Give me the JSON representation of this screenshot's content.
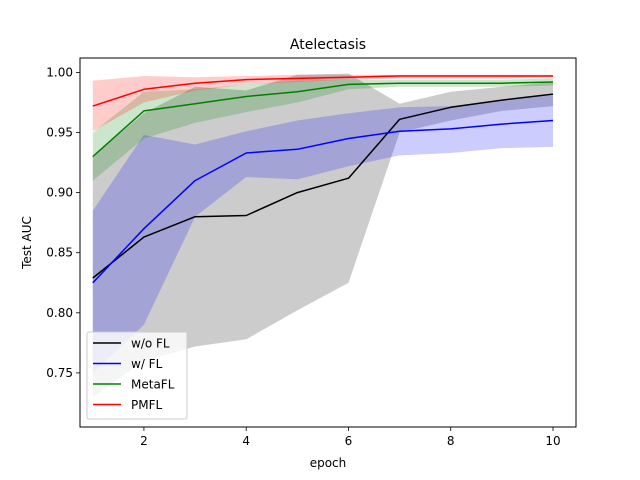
{
  "chart_data": {
    "type": "line",
    "title": "Atelectasis",
    "xlabel": "epoch",
    "ylabel": "Test AUC",
    "xlim": [
      0.75,
      10.45
    ],
    "ylim": [
      0.705,
      1.012
    ],
    "xticks": [
      2,
      4,
      6,
      8,
      10
    ],
    "xtick_labels": [
      "2",
      "4",
      "6",
      "8",
      "10"
    ],
    "yticks": [
      0.75,
      0.8,
      0.85,
      0.9,
      0.95,
      1.0
    ],
    "ytick_labels": [
      "0.75",
      "0.80",
      "0.85",
      "0.90",
      "0.95",
      "1.00"
    ],
    "legend_position": "lower-left",
    "x": [
      1,
      2,
      3,
      4,
      5,
      6,
      7,
      8,
      9,
      10
    ],
    "series": [
      {
        "name": "w/o FL",
        "color": "#000000",
        "band_color": "#808080",
        "band_opacity": 0.4,
        "values": [
          0.829,
          0.863,
          0.88,
          0.881,
          0.9,
          0.912,
          0.961,
          0.971,
          0.977,
          0.982
        ],
        "lower": [
          0.73,
          0.76,
          0.772,
          0.778,
          0.802,
          0.825,
          0.95,
          0.96,
          0.968,
          0.972
        ],
        "upper": [
          0.93,
          0.966,
          0.988,
          0.985,
          0.998,
          0.999,
          0.974,
          0.984,
          0.988,
          0.992
        ]
      },
      {
        "name": "w/ FL",
        "color": "#0000ff",
        "band_color": "#0000ff",
        "band_opacity": 0.2,
        "values": [
          0.825,
          0.87,
          0.91,
          0.933,
          0.936,
          0.945,
          0.951,
          0.953,
          0.957,
          0.96
        ],
        "lower": [
          0.75,
          0.79,
          0.88,
          0.913,
          0.911,
          0.922,
          0.931,
          0.933,
          0.937,
          0.938
        ],
        "upper": [
          0.885,
          0.948,
          0.94,
          0.951,
          0.96,
          0.966,
          0.971,
          0.972,
          0.977,
          0.981
        ]
      },
      {
        "name": "MetaFL",
        "color": "#008000",
        "band_color": "#008000",
        "band_opacity": 0.2,
        "values": [
          0.93,
          0.968,
          0.974,
          0.98,
          0.984,
          0.99,
          0.991,
          0.991,
          0.991,
          0.992
        ],
        "lower": [
          0.91,
          0.945,
          0.958,
          0.967,
          0.975,
          0.986,
          0.988,
          0.988,
          0.988,
          0.989
        ],
        "upper": [
          0.95,
          0.984,
          0.986,
          0.99,
          0.993,
          0.994,
          0.994,
          0.994,
          0.994,
          0.995
        ]
      },
      {
        "name": "PMFL",
        "color": "#ff0000",
        "band_color": "#ff0000",
        "band_opacity": 0.2,
        "values": [
          0.972,
          0.986,
          0.991,
          0.994,
          0.995,
          0.996,
          0.997,
          0.997,
          0.997,
          0.997
        ],
        "lower": [
          0.951,
          0.975,
          0.985,
          0.99,
          0.992,
          0.994,
          0.995,
          0.995,
          0.995,
          0.996
        ],
        "upper": [
          0.993,
          0.997,
          0.996,
          0.997,
          0.998,
          0.998,
          0.998,
          0.998,
          0.998,
          0.998
        ]
      }
    ]
  }
}
